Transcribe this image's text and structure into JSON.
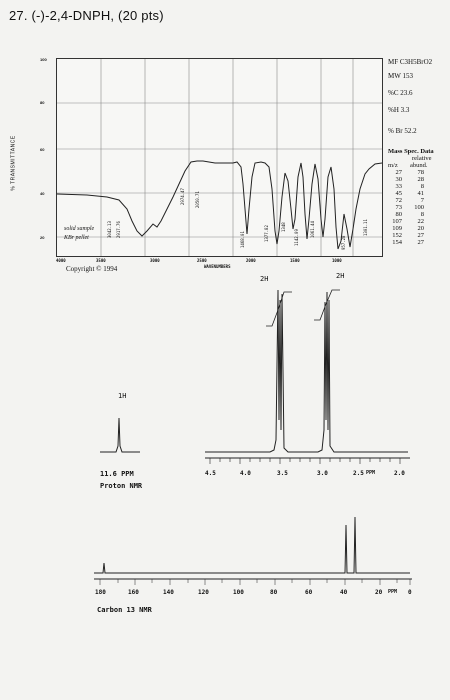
{
  "title": "27. (-)-2,4-DNPH, (20 pts)",
  "ir": {
    "y_axis_label": "% TRANSMITTANCE",
    "y_ticks": [
      "100",
      "80",
      "60",
      "40",
      "20"
    ],
    "x_ticks": [
      "4000",
      "3500",
      "3000",
      "2500",
      "2000",
      "1500",
      "1000"
    ],
    "x_axis_label": "WAVENUMBERS",
    "sample_line1": "solid sample",
    "sample_line2": "KBr pellet",
    "copyright": "Copyright © 1994",
    "peak_labels": [
      "3042.13",
      "2917.76",
      "2974.47",
      "2050.71",
      "1468.01",
      "1377.82",
      "1348",
      "1142.09",
      "1061.44",
      "957.28",
      "1301.11"
    ]
  },
  "sidebar": {
    "mf": "MF C3H5BrO2",
    "mw": "MW 153",
    "c": "%C 23.6",
    "h": "%H 3.3",
    "br": "% Br 52.2",
    "ms_title": "Mass Spec. Data",
    "ms_relative": "relative",
    "ms_col1": "m/z",
    "ms_col2": "abund.",
    "ms_rows": [
      [
        "27",
        "78"
      ],
      [
        "30",
        "28"
      ],
      [
        "33",
        "8"
      ],
      [
        "45",
        "41"
      ],
      [
        "72",
        "7"
      ],
      [
        "73",
        "100"
      ],
      [
        "80",
        "8"
      ],
      [
        "107",
        "22"
      ],
      [
        "109",
        "20"
      ],
      [
        "152",
        "27"
      ],
      [
        "154",
        "27"
      ]
    ]
  },
  "hnmr": {
    "integrals": [
      "2H",
      "2H"
    ],
    "inset_label": "1H",
    "inset_ppm": "11.6 PPM",
    "proton_label": "Proton NMR",
    "axis_ticks": [
      "4.5",
      "4.0",
      "3.5",
      "3.0",
      "2.5",
      "PPM",
      "2.0"
    ]
  },
  "cnmr": {
    "axis_ticks": [
      "180",
      "160",
      "140",
      "120",
      "100",
      "80",
      "60",
      "40",
      "20",
      "PPM",
      "0"
    ],
    "carbon_label": "Carbon 13 NMR"
  }
}
